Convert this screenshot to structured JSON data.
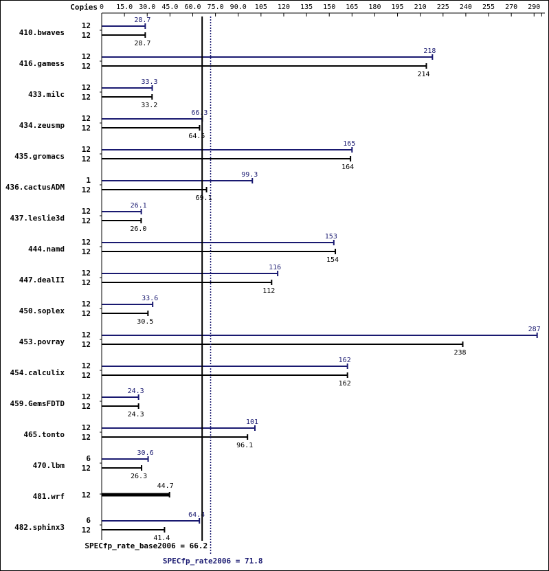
{
  "chart_data": {
    "type": "bar",
    "orientation": "horizontal",
    "header_label": "Copies",
    "xlim": [
      0,
      290
    ],
    "x_ticks": [
      "0",
      "15.0",
      "30.0",
      "45.0",
      "60.0",
      "75.0",
      "90.0",
      "105",
      "120",
      "135",
      "150",
      "165",
      "180",
      "195",
      "210",
      "225",
      "240",
      "255",
      "270",
      "290"
    ],
    "tick_step": 15,
    "benchmarks": [
      {
        "name": "410.bwaves",
        "peak_copies": "12",
        "peak": 28.7,
        "peak_label": "28.7",
        "base_copies": "12",
        "base": 28.7,
        "base_label": "28.7"
      },
      {
        "name": "416.gamess",
        "peak_copies": "12",
        "peak": 218,
        "peak_label": "218",
        "base_copies": "12",
        "base": 214,
        "base_label": "214"
      },
      {
        "name": "433.milc",
        "peak_copies": "12",
        "peak": 33.3,
        "peak_label": "33.3",
        "base_copies": "12",
        "base": 33.2,
        "base_label": "33.2"
      },
      {
        "name": "434.zeusmp",
        "peak_copies": "12",
        "peak": 66.3,
        "peak_label": "66.3",
        "base_copies": "12",
        "base": 64.5,
        "base_label": "64.5"
      },
      {
        "name": "435.gromacs",
        "peak_copies": "12",
        "peak": 165,
        "peak_label": "165",
        "base_copies": "12",
        "base": 164,
        "base_label": "164"
      },
      {
        "name": "436.cactusADM",
        "peak_copies": "1",
        "peak": 99.3,
        "peak_label": "99.3",
        "base_copies": "12",
        "base": 69.1,
        "base_label": "69.1"
      },
      {
        "name": "437.leslie3d",
        "peak_copies": "12",
        "peak": 26.1,
        "peak_label": "26.1",
        "base_copies": "12",
        "base": 26.0,
        "base_label": "26.0"
      },
      {
        "name": "444.namd",
        "peak_copies": "12",
        "peak": 153,
        "peak_label": "153",
        "base_copies": "12",
        "base": 154,
        "base_label": "154"
      },
      {
        "name": "447.dealII",
        "peak_copies": "12",
        "peak": 116,
        "peak_label": "116",
        "base_copies": "12",
        "base": 112,
        "base_label": "112"
      },
      {
        "name": "450.soplex",
        "peak_copies": "12",
        "peak": 33.6,
        "peak_label": "33.6",
        "base_copies": "12",
        "base": 30.5,
        "base_label": "30.5"
      },
      {
        "name": "453.povray",
        "peak_copies": "12",
        "peak": 287,
        "peak_label": "287",
        "base_copies": "12",
        "base": 238,
        "base_label": "238"
      },
      {
        "name": "454.calculix",
        "peak_copies": "12",
        "peak": 162,
        "peak_label": "162",
        "base_copies": "12",
        "base": 162,
        "base_label": "162"
      },
      {
        "name": "459.GemsFDTD",
        "peak_copies": "12",
        "peak": 24.3,
        "peak_label": "24.3",
        "base_copies": "12",
        "base": 24.3,
        "base_label": "24.3"
      },
      {
        "name": "465.tonto",
        "peak_copies": "12",
        "peak": 101,
        "peak_label": "101",
        "base_copies": "12",
        "base": 96.1,
        "base_label": "96.1"
      },
      {
        "name": "470.lbm",
        "peak_copies": "6",
        "peak": 30.6,
        "peak_label": "30.6",
        "base_copies": "12",
        "base": 26.3,
        "base_label": "26.3"
      },
      {
        "name": "481.wrf",
        "peak_copies": null,
        "peak": null,
        "peak_label": null,
        "base_copies": "12",
        "base": 44.7,
        "base_label": "44.7"
      },
      {
        "name": "482.sphinx3",
        "peak_copies": "6",
        "peak": 64.4,
        "peak_label": "64.4",
        "base_copies": "12",
        "base": 41.4,
        "base_label": "41.4"
      }
    ],
    "base_summary": {
      "label": "SPECfp_rate_base2006 = 66.2",
      "value": 66.2
    },
    "peak_summary": {
      "label": "SPECfp_rate2006 = 71.8",
      "value": 71.8
    },
    "colors": {
      "peak": "#191970",
      "base": "#000000"
    }
  }
}
